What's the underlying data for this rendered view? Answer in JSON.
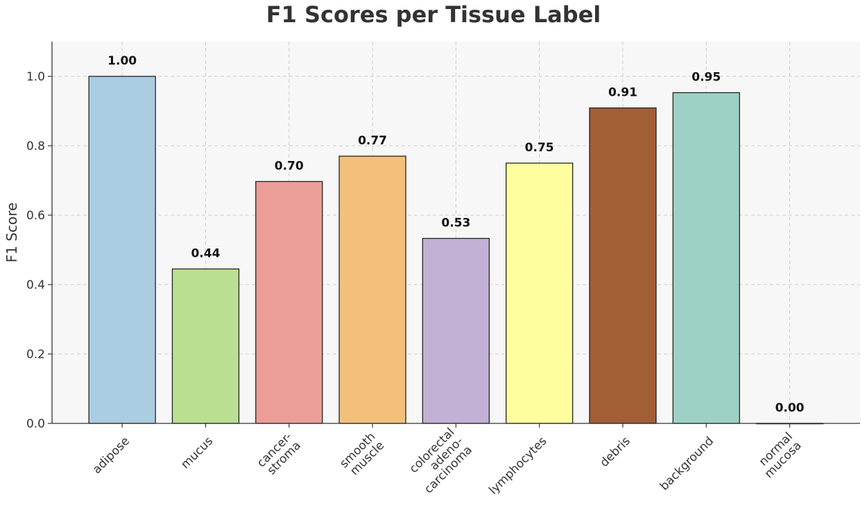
{
  "chart_data": {
    "type": "bar",
    "title": "F1 Scores per Tissue Label",
    "xlabel": "",
    "ylabel": "F1 Score",
    "ylim": [
      0,
      1.1
    ],
    "yticks": [
      "0.0",
      "0.2",
      "0.4",
      "0.6",
      "0.8",
      "1.0"
    ],
    "grid": true,
    "categories": [
      [
        "adipose"
      ],
      [
        "mucus"
      ],
      [
        "cancer-",
        "stroma"
      ],
      [
        "smooth",
        "muscle"
      ],
      [
        "colorectal",
        "adeno-",
        "carcinoma"
      ],
      [
        "lymphocytes"
      ],
      [
        "debris"
      ],
      [
        "background"
      ],
      [
        "normal",
        "mucosa"
      ]
    ],
    "values": [
      1.0,
      0.445,
      0.697,
      0.77,
      0.533,
      0.75,
      0.909,
      0.953,
      0.0
    ],
    "value_labels": [
      "1.00",
      "0.44",
      "0.70",
      "0.77",
      "0.53",
      "0.75",
      "0.91",
      "0.95",
      "0.00"
    ],
    "colors": [
      "#abcde1",
      "#bbdf91",
      "#eb9e98",
      "#f3c07c",
      "#c3b1d5",
      "#fffe9e",
      "#a25e36",
      "#9dd1c6",
      "#e8e8e8"
    ]
  }
}
